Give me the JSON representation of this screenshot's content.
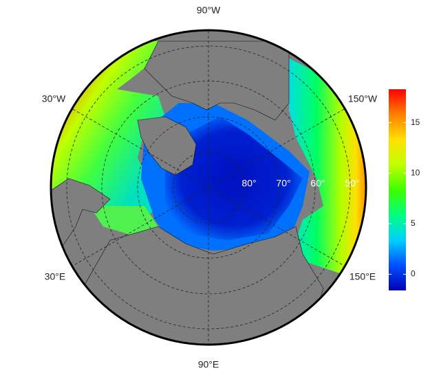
{
  "map": {
    "longitude_labels": {
      "top": "90°W",
      "upper_left": "30°W",
      "upper_right": "150°W",
      "lower_left": "30°E",
      "lower_right": "150°E",
      "bottom": "90°E"
    },
    "latitude_labels": [
      "80°",
      "70°",
      "60°",
      "50°"
    ],
    "colorbar": {
      "range": [
        -1.6,
        18.3
      ],
      "ticks": [
        0,
        5,
        10,
        15
      ],
      "colors": [
        "#0000b4",
        "#0050ff",
        "#00d0ff",
        "#00ff80",
        "#40ff00",
        "#c0ff00",
        "#ffe000",
        "#ff8000",
        "#ff0000"
      ]
    }
  }
}
